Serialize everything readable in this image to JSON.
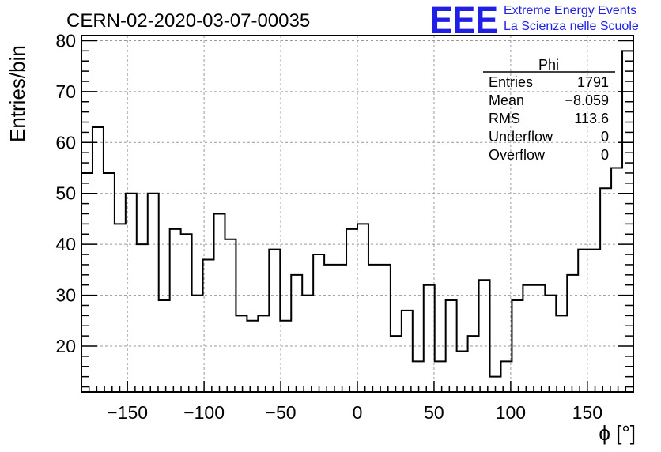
{
  "chart_data": {
    "type": "histogram",
    "title": "CERN-02-2020-03-07-00035",
    "xlabel": "ϕ [°]",
    "ylabel": "Entries/bin",
    "xlim": [
      -180,
      180
    ],
    "ylim": [
      11,
      81
    ],
    "xticks": [
      -150,
      -100,
      -50,
      0,
      50,
      100,
      150
    ],
    "xtick_labels": [
      "−150",
      "−100",
      "−50",
      "0",
      "50",
      "100",
      "150"
    ],
    "yticks": [
      20,
      30,
      40,
      50,
      60,
      70,
      80
    ],
    "grid": true,
    "bin_width": 7.2,
    "values": [
      54,
      63,
      54,
      44,
      50,
      40,
      50,
      29,
      43,
      42,
      30,
      37,
      46,
      41,
      26,
      25,
      26,
      39,
      25,
      34,
      30,
      38,
      36,
      36,
      43,
      44,
      36,
      36,
      22,
      27,
      17,
      32,
      17,
      29,
      19,
      22,
      33,
      14,
      17,
      29,
      32,
      32,
      30,
      26,
      34,
      39,
      39,
      51,
      55,
      78
    ],
    "stats": {
      "title": "Phi",
      "rows": [
        {
          "label": "Entries",
          "value": "1791"
        },
        {
          "label": "Mean",
          "value": "−8.059"
        },
        {
          "label": "RMS",
          "value": "113.6"
        },
        {
          "label": "Underflow",
          "value": "0"
        },
        {
          "label": "Overflow",
          "value": "0"
        }
      ]
    }
  },
  "logo": {
    "mark": "EEE",
    "line1": "Extreme Energy Events",
    "line2": "La Scienza nelle Scuole",
    "color": "#1f1fe6"
  }
}
